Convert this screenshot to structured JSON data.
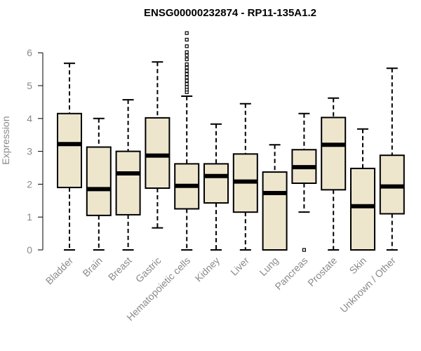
{
  "chart_data": {
    "type": "boxplot",
    "title": "ENSG00000232874 - RP11-135A1.2",
    "xlabel": "",
    "ylabel": "Expression",
    "ylim": [
      0,
      6.9
    ],
    "yticks": [
      0,
      1,
      2,
      3,
      4,
      5,
      6
    ],
    "grid": false,
    "legend": "none",
    "colors": {
      "box_fill": "#EDE6CD",
      "stroke": "#000000",
      "axis_text": "#8a8a8a"
    },
    "categories": [
      "Bladder",
      "Brain",
      "Breast",
      "Gastric",
      "Hematopoietic cells",
      "Kidney",
      "Liver",
      "Lung",
      "Pancreas",
      "Prostate",
      "Skin",
      "Unknown / Other"
    ],
    "boxes": [
      {
        "category": "Bladder",
        "min": 0,
        "q1": 1.9,
        "median": 3.22,
        "q3": 4.15,
        "max": 5.68,
        "outliers": []
      },
      {
        "category": "Brain",
        "min": 0,
        "q1": 1.05,
        "median": 1.85,
        "q3": 3.13,
        "max": 4.0,
        "outliers": []
      },
      {
        "category": "Breast",
        "min": 0,
        "q1": 1.07,
        "median": 2.33,
        "q3": 3.0,
        "max": 4.57,
        "outliers": []
      },
      {
        "category": "Gastric",
        "min": 0.67,
        "q1": 1.88,
        "median": 2.87,
        "q3": 4.02,
        "max": 5.72,
        "outliers": []
      },
      {
        "category": "Hematopoietic cells",
        "min": 0,
        "q1": 1.25,
        "median": 1.95,
        "q3": 2.62,
        "max": 4.68,
        "outliers": [
          4.8,
          4.88,
          4.96,
          5.05,
          5.15,
          5.25,
          5.35,
          5.45,
          5.55,
          5.65,
          5.8,
          5.92,
          6.02,
          6.2,
          6.4,
          6.6
        ]
      },
      {
        "category": "Kidney",
        "min": 0,
        "q1": 1.43,
        "median": 2.25,
        "q3": 2.62,
        "max": 3.83,
        "outliers": []
      },
      {
        "category": "Liver",
        "min": 0,
        "q1": 1.15,
        "median": 2.08,
        "q3": 2.92,
        "max": 4.45,
        "outliers": []
      },
      {
        "category": "Lung",
        "min": 0,
        "q1": 0,
        "median": 1.73,
        "q3": 2.37,
        "max": 3.2,
        "outliers": []
      },
      {
        "category": "Pancreas",
        "min": 1.15,
        "q1": 2.03,
        "median": 2.52,
        "q3": 3.05,
        "max": 4.15,
        "outliers": [
          0
        ]
      },
      {
        "category": "Prostate",
        "min": 0,
        "q1": 1.83,
        "median": 3.2,
        "q3": 4.03,
        "max": 4.62,
        "outliers": []
      },
      {
        "category": "Skin",
        "min": 0,
        "q1": 0,
        "median": 1.33,
        "q3": 2.48,
        "max": 3.68,
        "outliers": []
      },
      {
        "category": "Unknown / Other",
        "min": 0,
        "q1": 1.1,
        "median": 1.93,
        "q3": 2.88,
        "max": 5.53,
        "outliers": []
      }
    ]
  }
}
